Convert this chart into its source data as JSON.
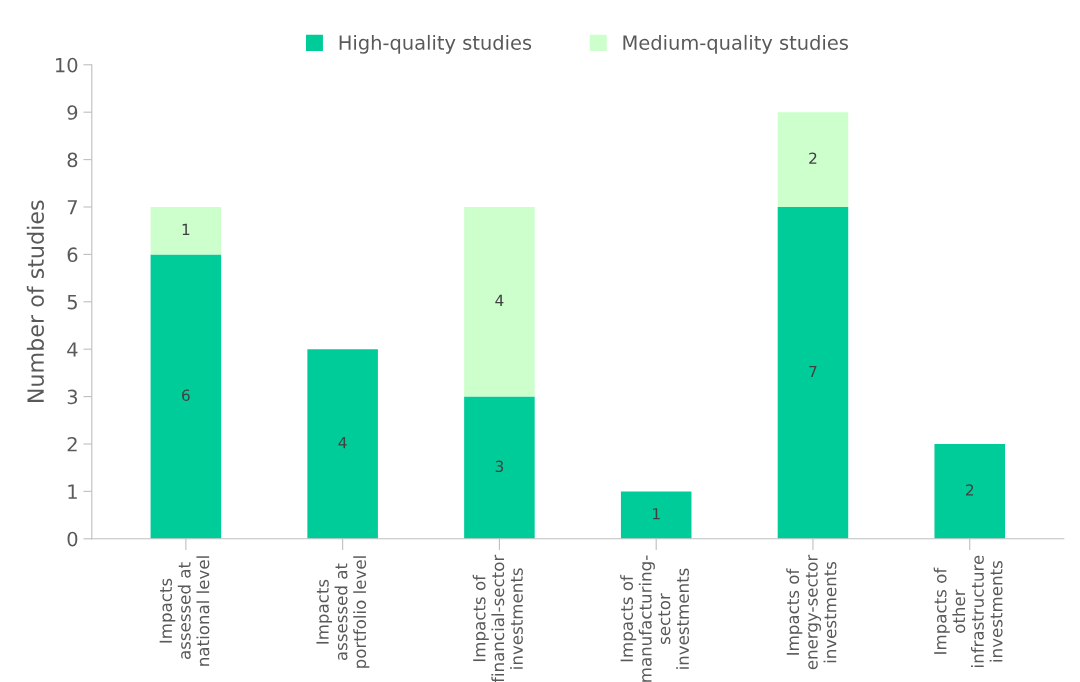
{
  "chart_data": {
    "type": "bar",
    "stacked": true,
    "ylabel": "Number of studies",
    "categories": [
      "Impacts\nassessed at\nnational level",
      "Impacts\nassessed at\nportfolio level",
      "Impacts of\nfinancial-sector\ninvestments",
      "Impacts of\nmanufacturing-\nsector\ninvestments",
      "Impacts of\nenergy-sector\ninvestments",
      "Impacts of\nother\ninfrastructure\ninvestments"
    ],
    "series": [
      {
        "name": "High-quality studies",
        "color": "#00cc99",
        "values": [
          6,
          4,
          3,
          1,
          7,
          2
        ]
      },
      {
        "name": "Medium-quality studies",
        "color": "#ccffcc",
        "values": [
          1,
          null,
          4,
          null,
          2,
          null
        ]
      }
    ],
    "ylim": [
      0,
      10
    ],
    "yticks": [
      0,
      1,
      2,
      3,
      4,
      5,
      6,
      7,
      8,
      9,
      10
    ],
    "grid": false,
    "legend": "top",
    "data_labels": true
  }
}
